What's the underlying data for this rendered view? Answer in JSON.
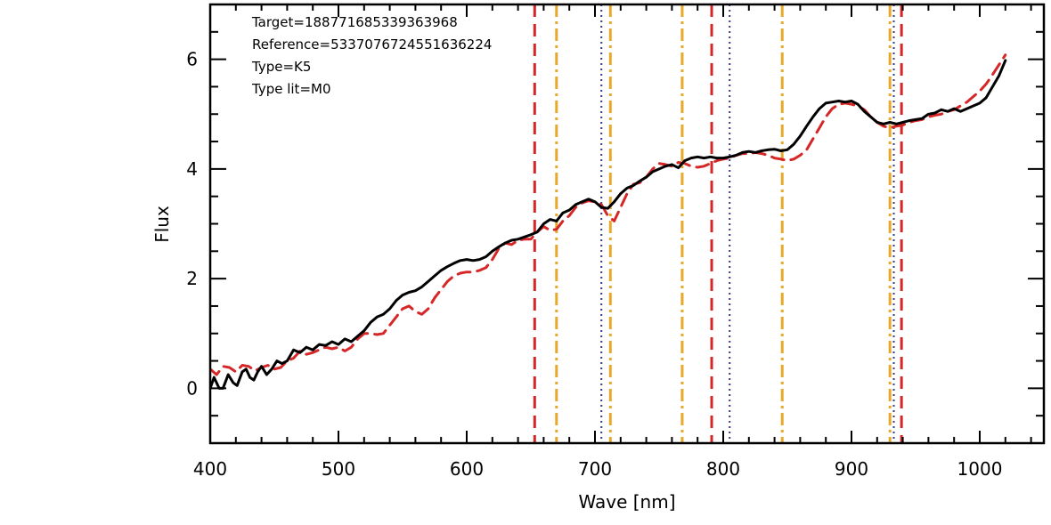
{
  "chart_data": {
    "type": "line",
    "xlabel": "Wave [nm]",
    "ylabel": "Flux",
    "xlim": [
      400,
      1050
    ],
    "ylim": [
      -1,
      7
    ],
    "xticks": [
      400,
      500,
      600,
      700,
      800,
      900,
      1000
    ],
    "yticks": [
      0,
      2,
      4,
      6
    ],
    "grid": false,
    "annotations": [
      "Target=188771685339363968",
      "Reference=5337076724551636224",
      "Type=K5",
      "Type lit=M0"
    ],
    "series": [
      {
        "style": "solid",
        "color": "#000000",
        "x": [
          400,
          403,
          407,
          410,
          414,
          418,
          421,
          425,
          428,
          431,
          434,
          437,
          440,
          444,
          448,
          452,
          456,
          460,
          465,
          470,
          475,
          480,
          485,
          490,
          495,
          500,
          505,
          510,
          515,
          520,
          525,
          530,
          535,
          540,
          545,
          550,
          555,
          560,
          565,
          570,
          575,
          580,
          585,
          590,
          595,
          600,
          605,
          610,
          615,
          620,
          625,
          630,
          635,
          640,
          645,
          650,
          655,
          660,
          665,
          670,
          675,
          680,
          685,
          690,
          695,
          700,
          705,
          710,
          715,
          720,
          725,
          730,
          735,
          740,
          745,
          750,
          755,
          760,
          765,
          770,
          775,
          780,
          785,
          790,
          795,
          800,
          805,
          810,
          815,
          820,
          825,
          830,
          835,
          840,
          845,
          850,
          855,
          860,
          865,
          870,
          875,
          880,
          885,
          890,
          895,
          900,
          905,
          910,
          915,
          920,
          925,
          930,
          935,
          940,
          945,
          950,
          955,
          960,
          965,
          970,
          975,
          980,
          985,
          990,
          995,
          1000,
          1005,
          1010,
          1015,
          1020
        ],
        "y": [
          0.0,
          0.2,
          0.0,
          0.0,
          0.25,
          0.1,
          0.05,
          0.3,
          0.35,
          0.2,
          0.15,
          0.3,
          0.4,
          0.25,
          0.35,
          0.5,
          0.45,
          0.5,
          0.7,
          0.65,
          0.75,
          0.7,
          0.8,
          0.78,
          0.85,
          0.8,
          0.9,
          0.85,
          0.95,
          1.05,
          1.2,
          1.3,
          1.35,
          1.45,
          1.6,
          1.7,
          1.75,
          1.78,
          1.85,
          1.95,
          2.05,
          2.15,
          2.22,
          2.28,
          2.33,
          2.35,
          2.33,
          2.35,
          2.4,
          2.5,
          2.58,
          2.65,
          2.7,
          2.72,
          2.76,
          2.8,
          2.85,
          3.0,
          3.08,
          3.05,
          3.2,
          3.25,
          3.35,
          3.4,
          3.45,
          3.4,
          3.3,
          3.28,
          3.4,
          3.55,
          3.65,
          3.7,
          3.78,
          3.85,
          3.95,
          4.0,
          4.05,
          4.08,
          4.02,
          4.15,
          4.2,
          4.22,
          4.2,
          4.22,
          4.2,
          4.2,
          4.22,
          4.25,
          4.3,
          4.32,
          4.3,
          4.33,
          4.35,
          4.36,
          4.33,
          4.35,
          4.45,
          4.6,
          4.78,
          4.95,
          5.1,
          5.2,
          5.22,
          5.24,
          5.22,
          5.24,
          5.18,
          5.05,
          4.95,
          4.85,
          4.82,
          4.85,
          4.82,
          4.85,
          4.88,
          4.9,
          4.92,
          5.0,
          5.02,
          5.08,
          5.05,
          5.1,
          5.05,
          5.1,
          5.15,
          5.2,
          5.3,
          5.5,
          5.7,
          5.98
        ]
      },
      {
        "style": "dashed",
        "color": "#d62728",
        "x": [
          400,
          405,
          410,
          415,
          420,
          425,
          430,
          435,
          440,
          445,
          450,
          455,
          460,
          465,
          470,
          475,
          480,
          485,
          490,
          495,
          500,
          505,
          510,
          515,
          520,
          525,
          530,
          535,
          540,
          545,
          550,
          555,
          560,
          565,
          570,
          575,
          580,
          585,
          590,
          595,
          600,
          605,
          610,
          615,
          620,
          625,
          630,
          635,
          640,
          645,
          650,
          655,
          660,
          665,
          670,
          675,
          680,
          685,
          690,
          695,
          700,
          705,
          710,
          715,
          720,
          725,
          730,
          735,
          740,
          745,
          750,
          755,
          760,
          765,
          770,
          775,
          780,
          785,
          790,
          795,
          800,
          805,
          810,
          815,
          820,
          825,
          830,
          835,
          840,
          845,
          850,
          855,
          860,
          865,
          870,
          875,
          880,
          885,
          890,
          895,
          900,
          905,
          910,
          915,
          920,
          925,
          930,
          935,
          940,
          945,
          950,
          955,
          960,
          965,
          970,
          975,
          980,
          985,
          990,
          995,
          1000,
          1005,
          1010,
          1015,
          1020
        ],
        "y": [
          0.35,
          0.25,
          0.4,
          0.38,
          0.3,
          0.42,
          0.4,
          0.32,
          0.38,
          0.42,
          0.35,
          0.38,
          0.5,
          0.55,
          0.68,
          0.62,
          0.65,
          0.7,
          0.75,
          0.72,
          0.75,
          0.68,
          0.75,
          0.9,
          1.0,
          1.0,
          0.98,
          1.0,
          1.15,
          1.3,
          1.45,
          1.5,
          1.4,
          1.35,
          1.45,
          1.65,
          1.8,
          1.95,
          2.05,
          2.1,
          2.12,
          2.12,
          2.15,
          2.2,
          2.35,
          2.55,
          2.65,
          2.62,
          2.7,
          2.72,
          2.72,
          2.85,
          2.95,
          2.88,
          2.9,
          3.05,
          3.15,
          3.3,
          3.38,
          3.42,
          3.4,
          3.35,
          3.15,
          3.05,
          3.3,
          3.55,
          3.72,
          3.75,
          3.85,
          4.0,
          4.1,
          4.08,
          4.05,
          4.12,
          4.1,
          4.05,
          4.03,
          4.05,
          4.1,
          4.15,
          4.18,
          4.2,
          4.25,
          4.28,
          4.28,
          4.3,
          4.28,
          4.25,
          4.2,
          4.18,
          4.15,
          4.18,
          4.25,
          4.35,
          4.55,
          4.75,
          4.95,
          5.1,
          5.18,
          5.2,
          5.18,
          5.15,
          5.08,
          4.95,
          4.85,
          4.78,
          4.75,
          4.78,
          4.8,
          4.85,
          4.88,
          4.9,
          4.95,
          4.98,
          5.0,
          5.05,
          5.08,
          5.15,
          5.22,
          5.32,
          5.42,
          5.55,
          5.72,
          5.9,
          6.08
        ]
      }
    ],
    "vlines": [
      {
        "x": 653,
        "style": "dashed",
        "color": "#d62728"
      },
      {
        "x": 791,
        "style": "dashed",
        "color": "#d62728"
      },
      {
        "x": 939,
        "style": "dashed",
        "color": "#d62728"
      },
      {
        "x": 670,
        "style": "dashdot",
        "color": "#e8a92a"
      },
      {
        "x": 712,
        "style": "dashdot",
        "color": "#e8a92a"
      },
      {
        "x": 768,
        "style": "dashdot",
        "color": "#e8a92a"
      },
      {
        "x": 846,
        "style": "dashdot",
        "color": "#e8a92a"
      },
      {
        "x": 930,
        "style": "dashdot",
        "color": "#e8a92a"
      },
      {
        "x": 705,
        "style": "dotted",
        "color": "#3a3a8c"
      },
      {
        "x": 805,
        "style": "dotted",
        "color": "#3a3a8c"
      },
      {
        "x": 933,
        "style": "dotted",
        "color": "#3a3a8c"
      }
    ]
  }
}
